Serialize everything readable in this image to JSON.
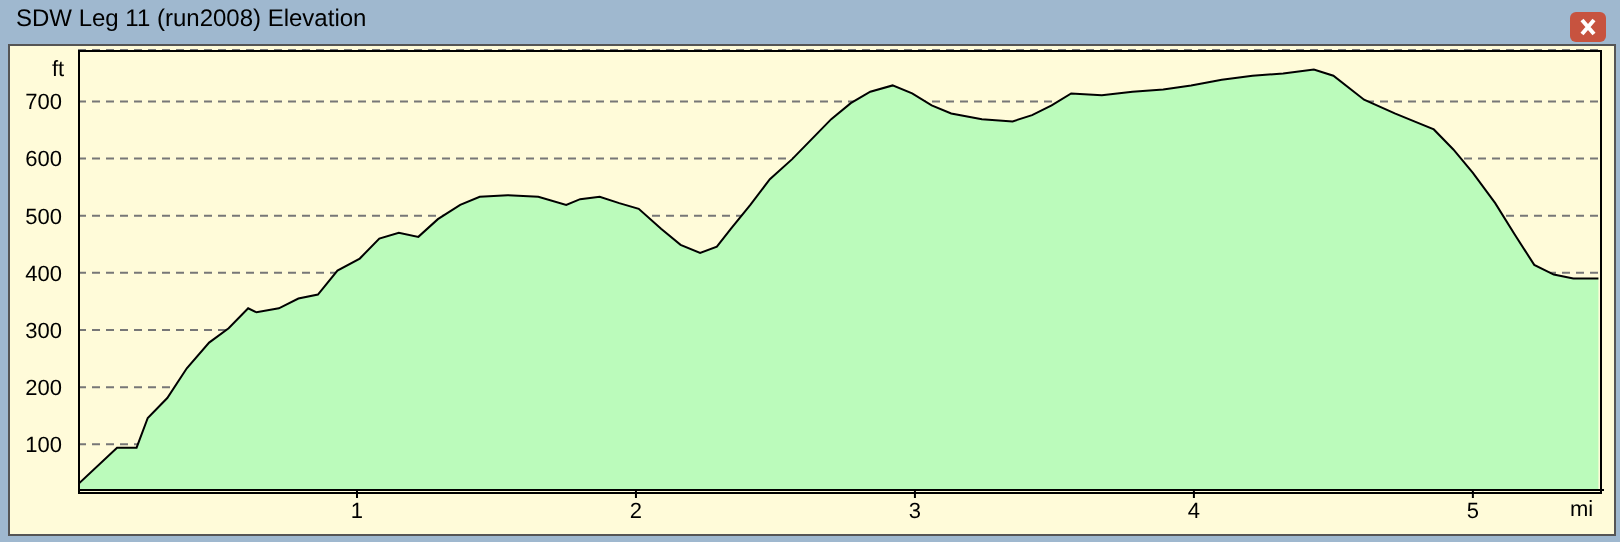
{
  "chart_data": {
    "type": "area",
    "title": "SDW Leg 11 (run2008) Elevation",
    "xlabel": "mi",
    "ylabel": "ft",
    "x": [
      0,
      0.14,
      0.21,
      0.25,
      0.32,
      0.39,
      0.47,
      0.54,
      0.61,
      0.64,
      0.72,
      0.79,
      0.86,
      0.93,
      1.01,
      1.08,
      1.15,
      1.22,
      1.29,
      1.37,
      1.44,
      1.54,
      1.65,
      1.75,
      1.8,
      1.87,
      1.94,
      2.01,
      2.09,
      2.16,
      2.23,
      2.29,
      2.34,
      2.41,
      2.48,
      2.56,
      2.63,
      2.7,
      2.77,
      2.84,
      2.92,
      2.99,
      3.06,
      3.13,
      3.24,
      3.35,
      3.42,
      3.49,
      3.56,
      3.67,
      3.78,
      3.89,
      3.99,
      4.1,
      4.21,
      4.32,
      4.43,
      4.5,
      4.61,
      4.72,
      4.79,
      4.86,
      4.93,
      5.0,
      5.08,
      5.15,
      5.22,
      5.29,
      5.36,
      5.45
    ],
    "series": [
      {
        "color": "#bbfbbb",
        "values": [
          30,
          94,
          94,
          146,
          181,
          233,
          278,
          303,
          338,
          331,
          338,
          355,
          362,
          404,
          425,
          460,
          470,
          463,
          494,
          519,
          533,
          536,
          533,
          519,
          529,
          533,
          522,
          512,
          477,
          449,
          435,
          446,
          477,
          519,
          564,
          599,
          634,
          669,
          697,
          717,
          728,
          714,
          693,
          679,
          669,
          665,
          676,
          693,
          714,
          711,
          717,
          721,
          728,
          738,
          745,
          749,
          756,
          745,
          703,
          679,
          665,
          651,
          616,
          575,
          522,
          467,
          414,
          397,
          390,
          390
        ]
      }
    ],
    "xlim": [
      0,
      5.47
    ],
    "xticks": [
      1,
      2,
      3,
      4,
      5
    ],
    "ylim": [
      20,
      790
    ],
    "yticks": [
      100,
      200,
      300,
      400,
      500,
      600,
      700
    ],
    "grid": "y"
  }
}
